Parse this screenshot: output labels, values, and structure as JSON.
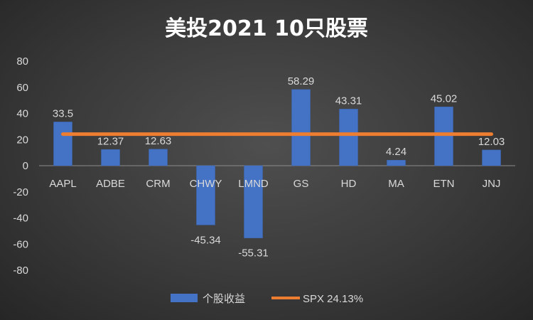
{
  "chart_data": {
    "type": "bar",
    "title": "美投2021 10只股票",
    "categories": [
      "AAPL",
      "ADBE",
      "CRM",
      "CHWY",
      "LMND",
      "GS",
      "HD",
      "MA",
      "ETN",
      "JNJ"
    ],
    "series": [
      {
        "name": "个股收益",
        "type": "bar",
        "values": [
          33.5,
          12.37,
          12.63,
          -45.34,
          -55.31,
          58.29,
          43.31,
          4.24,
          45.02,
          12.03
        ],
        "labels": [
          "33.5",
          "12.37",
          "12.63",
          "-45.34",
          "-55.31",
          "58.29",
          "43.31",
          "4.24",
          "45.02",
          "12.03"
        ],
        "color": "#4472C4"
      },
      {
        "name": "SPX 24.13%",
        "type": "line",
        "values": [
          24.13,
          24.13,
          24.13,
          24.13,
          24.13,
          24.13,
          24.13,
          24.13,
          24.13,
          24.13
        ],
        "color": "#ED7D31"
      }
    ],
    "ylim": [
      -80,
      80
    ],
    "yticks": [
      80,
      60,
      40,
      20,
      0,
      -20,
      -40,
      -60,
      -80
    ],
    "xlabel": "",
    "ylabel": "",
    "grid": false,
    "legend_position": "bottom",
    "colors": {
      "text": "#d9d9d9",
      "title": "#ffffff",
      "axis": "#8c8c8c"
    }
  }
}
